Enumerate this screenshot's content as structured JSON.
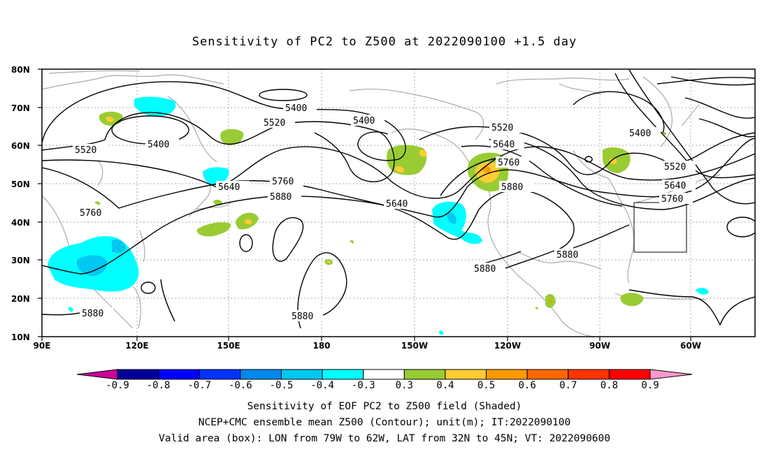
{
  "title": "Sensitivity of PC2 to Z500 at 2022090100 +1.5 day",
  "map": {
    "lat_ticks": [
      "80N",
      "70N",
      "60N",
      "50N",
      "40N",
      "30N",
      "20N",
      "10N"
    ],
    "lon_ticks": [
      "90E",
      "120E",
      "150E",
      "180",
      "150W",
      "120W",
      "90W",
      "60W"
    ],
    "contour_labels": [
      "5400",
      "5400",
      "5400",
      "5400",
      "5520",
      "5520",
      "5520",
      "5520",
      "5640",
      "5640",
      "5640",
      "5640",
      "5760",
      "5760",
      "5760",
      "5760",
      "5880",
      "5880",
      "5880",
      "5880",
      "5880",
      "5880"
    ],
    "valid_box": {
      "lon": [
        "79W",
        "62W"
      ],
      "lat": [
        "32N",
        "45N"
      ]
    }
  },
  "colorbar": {
    "labels": [
      "-0.9",
      "-0.8",
      "-0.7",
      "-0.6",
      "-0.5",
      "-0.4",
      "-0.3",
      "0.3",
      "0.4",
      "0.5",
      "0.6",
      "0.7",
      "0.8",
      "0.9"
    ],
    "colors": [
      "#000099",
      "#0000ff",
      "#0033ff",
      "#0088ee",
      "#00c8f0",
      "#00ffff",
      "#ffffff",
      "#99cc33",
      "#ffcc33",
      "#ff9900",
      "#ff6600",
      "#ff3300",
      "#ff0000"
    ],
    "left_arrow_color": "#cc0099",
    "right_arrow_color": "#ff99cc"
  },
  "footer": {
    "line1": "Sensitivity of EOF PC2 to Z500 field (Shaded)",
    "line2": "NCEP+CMC ensemble mean Z500 (Contour); unit(m); IT:2022090100",
    "line3": "Valid area (box): LON from 79W to 62W, LAT from 32N to 45N; VT: 2022090600"
  }
}
